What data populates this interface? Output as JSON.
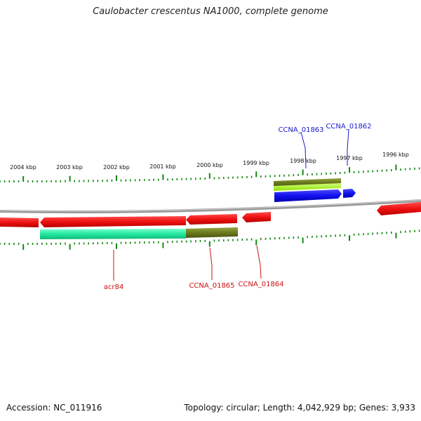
{
  "title": "Caulobacter crescentus NA1000, complete genome",
  "ticks": [
    {
      "label": "2004 kbp"
    },
    {
      "label": "2003 kbp"
    },
    {
      "label": "2002 kbp"
    },
    {
      "label": "2001 kbp"
    },
    {
      "label": "2000 kbp"
    },
    {
      "label": "1999 kbp"
    },
    {
      "label": "1998 kbp"
    },
    {
      "label": "1997 kbp"
    },
    {
      "label": "1996 kbp"
    }
  ],
  "forward_labels": [
    {
      "name": "CCNA_01863"
    },
    {
      "name": "CCNA_01862"
    }
  ],
  "reverse_labels": [
    {
      "name": "acr84"
    },
    {
      "name": "CCNA_01865"
    },
    {
      "name": "CCNA_01864"
    }
  ],
  "colors": {
    "forward_label": "#1a1acc",
    "reverse_label": "#cc1111",
    "gene": "#ee1111",
    "blue_gene": "#1111ee",
    "olive_feature": "#6b7a1e",
    "lime_feature": "#aaff22",
    "teal_feature": "#22e8a0",
    "tick": "#118811",
    "backbone": "#888888"
  },
  "footer": {
    "accession": "Accession: NC_011916",
    "summary": "Topology: circular; Length: 4,042,929 bp; Genes: 3,933"
  }
}
